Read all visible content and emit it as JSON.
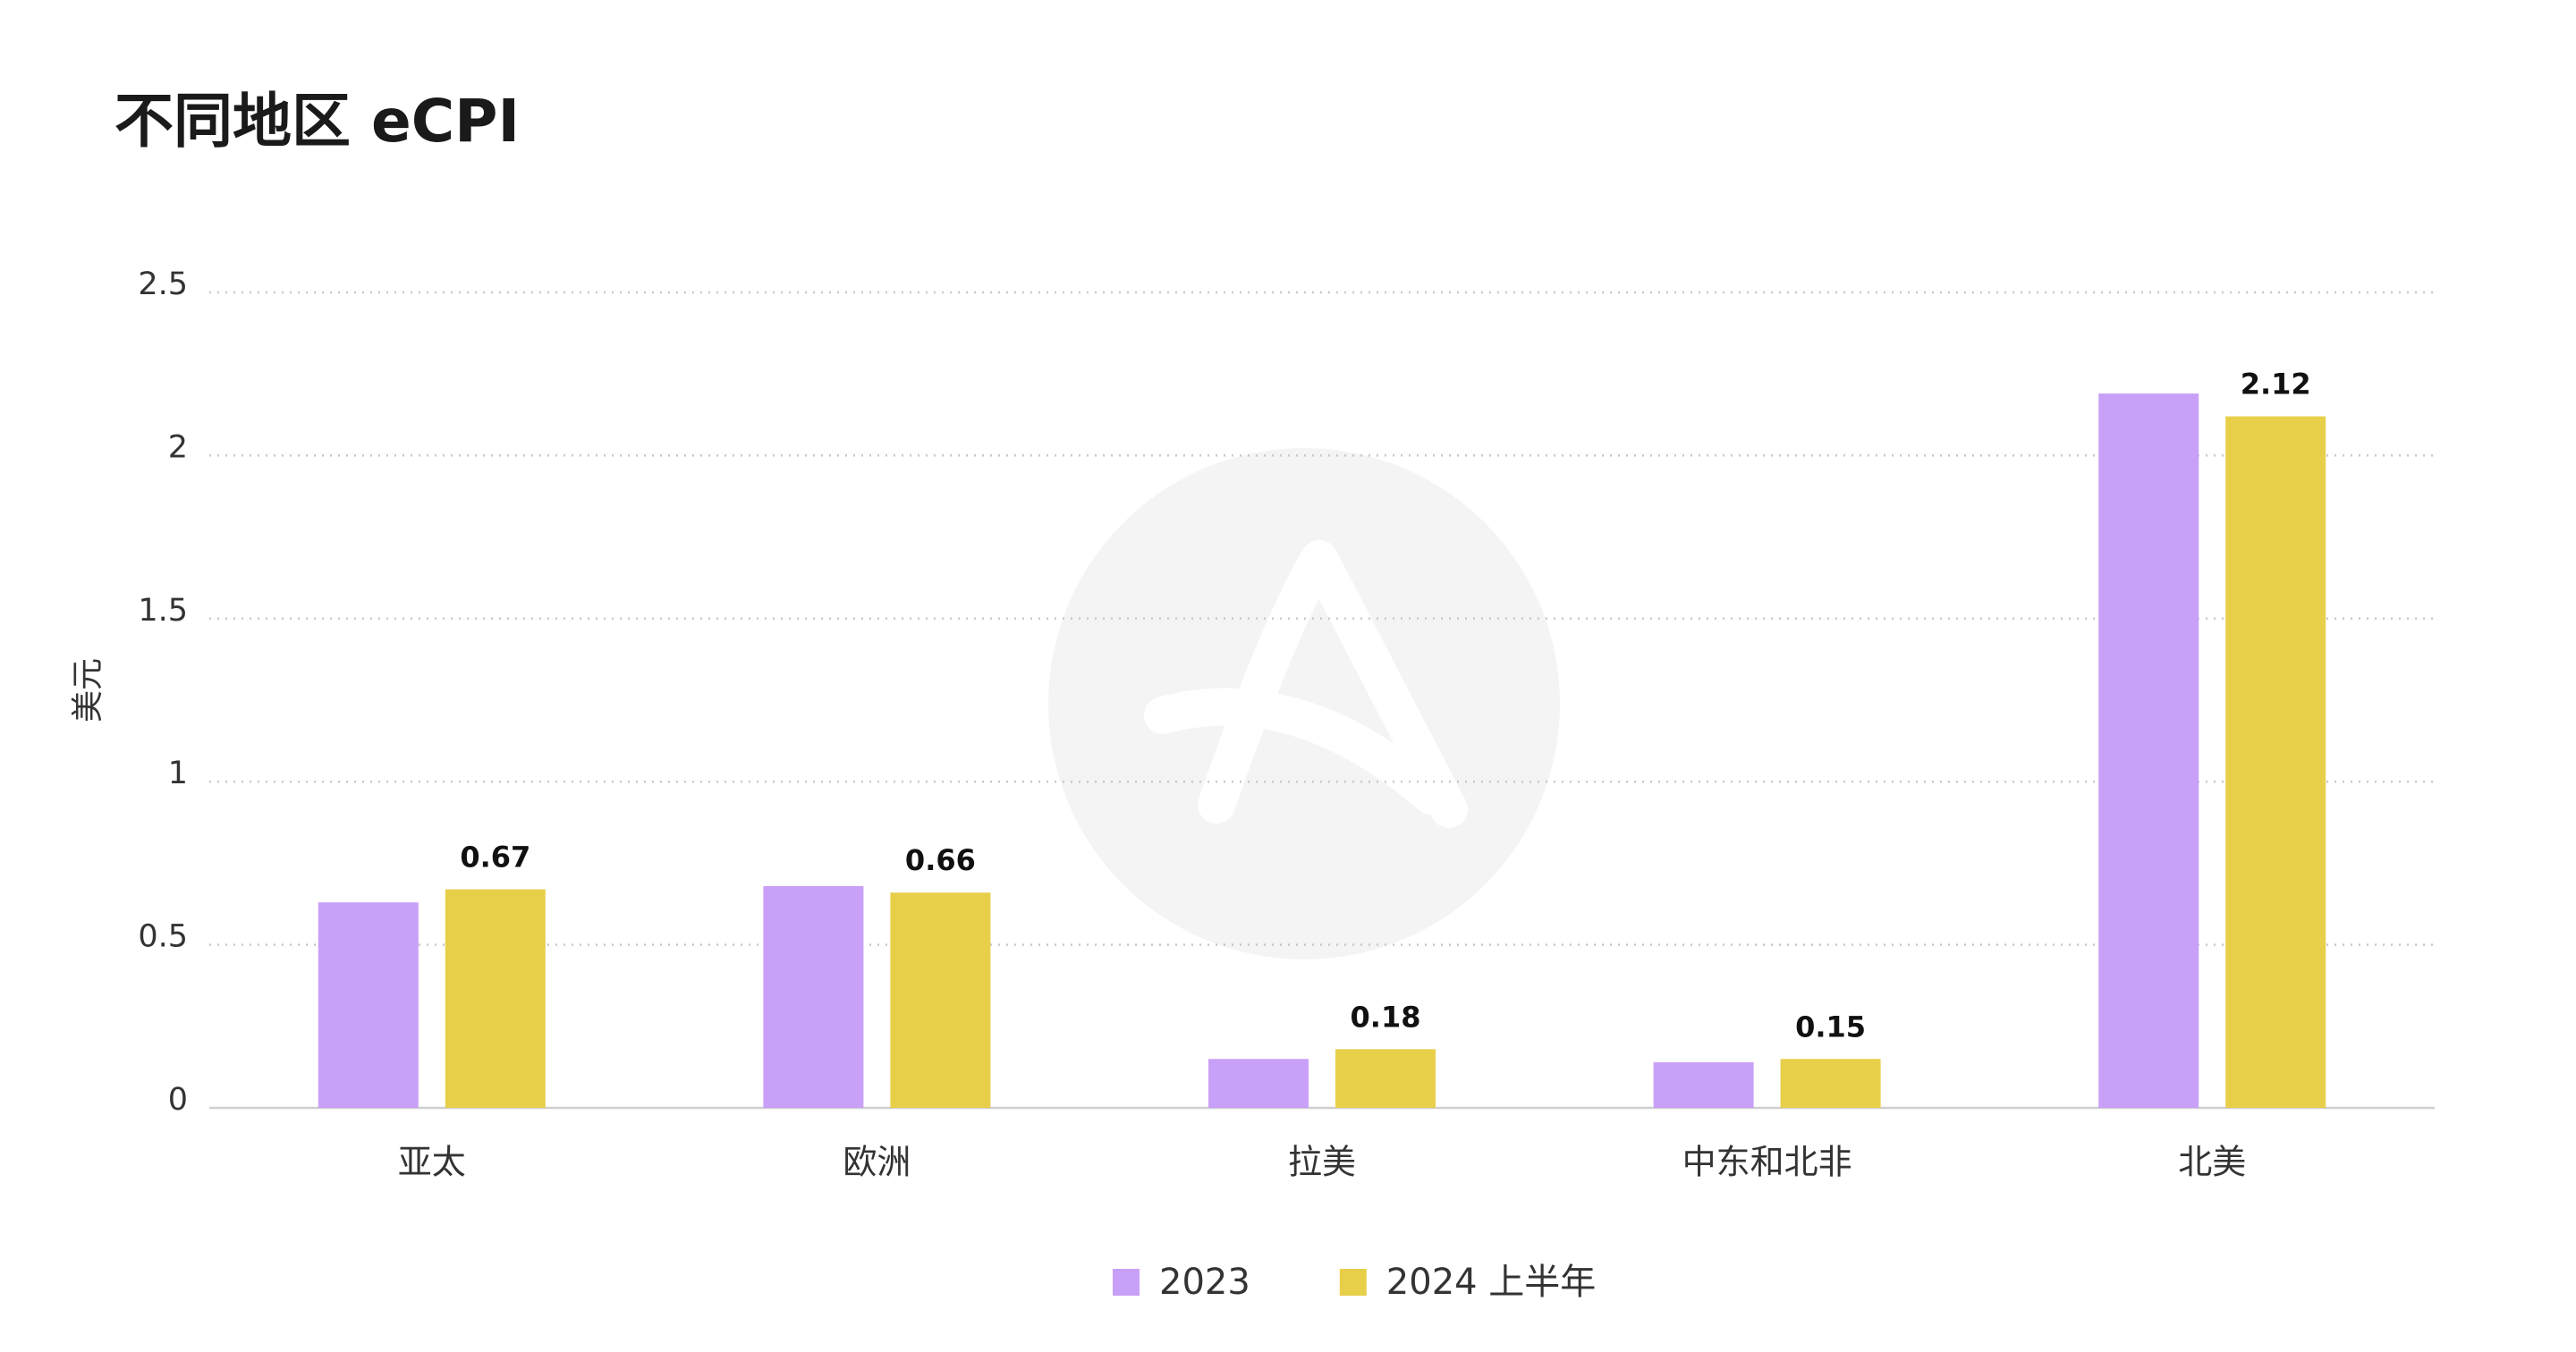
{
  "chart_data": {
    "type": "bar",
    "title": "不同地区 eCPI",
    "y_label": "美元",
    "categories": [
      "亚太",
      "欧洲",
      "拉美",
      "中东和北非",
      "北美"
    ],
    "series": [
      {
        "name": "2023",
        "color": "#c9a0f7",
        "values": [
          0.63,
          0.68,
          0.15,
          0.14,
          2.19
        ],
        "data_labels": false
      },
      {
        "name": "2024 上半年",
        "color": "#e8cf4a",
        "values": [
          0.67,
          0.66,
          0.18,
          0.15,
          2.12
        ],
        "data_labels": true
      }
    ],
    "ylim": [
      0,
      2.5
    ],
    "yticks": [
      0,
      0.5,
      1,
      1.5,
      2,
      2.5
    ],
    "grid": true
  }
}
